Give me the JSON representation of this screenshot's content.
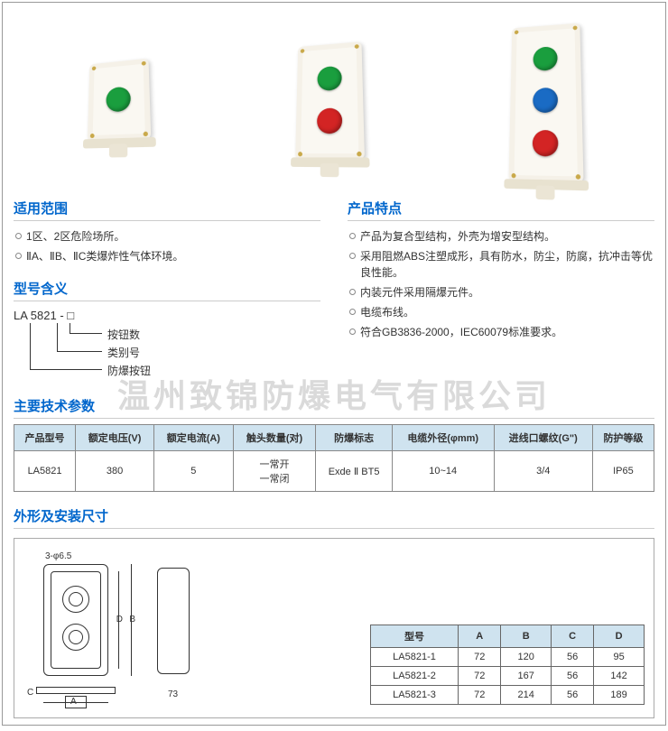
{
  "watermark": "温州致锦防爆电气有限公司",
  "sections": {
    "scope_title": "适用范围",
    "scope_items": [
      "1区、2区危险场所。",
      "ⅡA、ⅡB、ⅡC类爆炸性气体环境。"
    ],
    "model_title": "型号含义",
    "model_code": "LA 5821 - □",
    "model_labels": [
      "按钮数",
      "类别号",
      "防爆按钮"
    ],
    "features_title": "产品特点",
    "features_items": [
      "产品为复合型结构，外壳为增安型结构。",
      "采用阻燃ABS注塑成形，具有防水，防尘，防腐，抗冲击等优良性能。",
      "内装元件采用隔爆元件。",
      "电缆布线。",
      "符合GB3836-2000，IEC60079标准要求。"
    ],
    "params_title": "主要技术参数",
    "dims_title": "外形及安装尺寸"
  },
  "spec_table": {
    "headers": [
      "产品型号",
      "额定电压(V)",
      "额定电流(A)",
      "触头数量(对)",
      "防爆标志",
      "电缆外径(φmm)",
      "进线口螺纹(G\")",
      "防护等级"
    ],
    "rows": [
      [
        "LA5821",
        "380",
        "5",
        "一常开\n一常闭",
        "Exde Ⅱ BT5",
        "10~14",
        "3/4",
        "IP65"
      ]
    ]
  },
  "dims_table": {
    "headers": [
      "型号",
      "A",
      "B",
      "C",
      "D"
    ],
    "rows": [
      [
        "LA5821-1",
        "72",
        "120",
        "56",
        "95"
      ],
      [
        "LA5821-2",
        "72",
        "167",
        "56",
        "142"
      ],
      [
        "LA5821-3",
        "72",
        "214",
        "56",
        "189"
      ]
    ]
  },
  "drawing_labels": {
    "hole": "3-φ6.5",
    "A": "A",
    "B": "B",
    "C": "C",
    "D": "D",
    "side_w": "73"
  },
  "colors": {
    "title": "#0066cc",
    "table_header_bg": "#cfe3ef",
    "green": "#1a9e3e",
    "red": "#d32424",
    "blue": "#1a6bc4"
  }
}
